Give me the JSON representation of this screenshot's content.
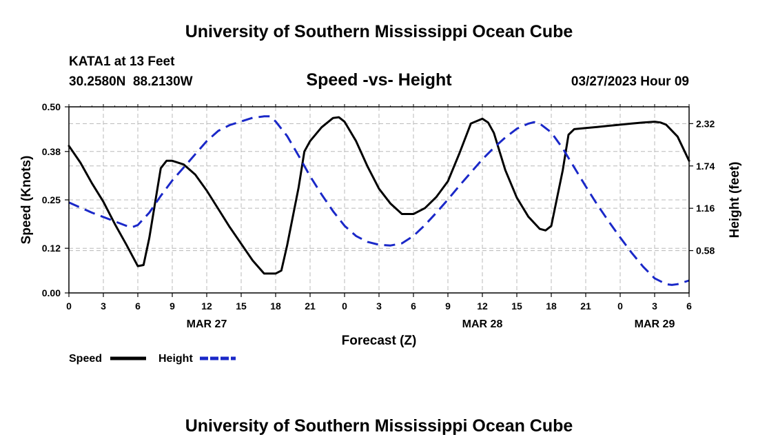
{
  "page": {
    "title": "University of Southern Mississippi Ocean Cube",
    "footer_title": "University of Southern Mississippi Ocean Cube"
  },
  "chart_data": {
    "type": "line",
    "title": "Speed -vs- Height",
    "station": "KATA1 at 13 Feet",
    "location": "30.2580N  88.2130W",
    "timestamp": "03/27/2023 Hour 09",
    "xlabel": "Forecast (Z)",
    "ylabel": "Speed (Knots)",
    "y2label": "Height (feet)",
    "x_range": [
      0,
      54
    ],
    "x_ticks": [
      0,
      3,
      6,
      9,
      12,
      15,
      18,
      21,
      24,
      27,
      30,
      33,
      36,
      39,
      42,
      45,
      48,
      51,
      54
    ],
    "x_tick_labels": [
      "0",
      "3",
      "6",
      "9",
      "12",
      "15",
      "18",
      "21",
      "0",
      "3",
      "6",
      "9",
      "12",
      "15",
      "18",
      "21",
      "0",
      "3",
      "6"
    ],
    "date_labels": [
      {
        "hour": 12,
        "label": "MAR 27"
      },
      {
        "hour": 36,
        "label": "MAR 28"
      },
      {
        "hour": 51,
        "label": "MAR 29"
      }
    ],
    "y_range": [
      0,
      0.5
    ],
    "y_ticks": [
      0,
      0.12,
      0.25,
      0.38,
      0.5
    ],
    "y_tick_labels": [
      "0.00",
      "0.12",
      "0.25",
      "0.38",
      "0.50"
    ],
    "y2_range": [
      0,
      2.55
    ],
    "y2_ticks": [
      0.58,
      1.16,
      1.74,
      2.32
    ],
    "y2_tick_labels": [
      "0.58",
      "1.16",
      "1.74",
      "2.32"
    ],
    "grid": true,
    "series": [
      {
        "name": "Speed",
        "axis": "left",
        "color": "#000000",
        "dash": "solid",
        "x": [
          0,
          1,
          2,
          3,
          4,
          5,
          6,
          6.5,
          7,
          8,
          8.5,
          9,
          10,
          11,
          12,
          13,
          14,
          15,
          16,
          17,
          18,
          18.5,
          19,
          20,
          20.5,
          21,
          22,
          23,
          23.5,
          24,
          25,
          26,
          27,
          28,
          29,
          30,
          31,
          32,
          33,
          34,
          35,
          36,
          36.5,
          37,
          38,
          39,
          40,
          41,
          41.5,
          42,
          43,
          43.5,
          44,
          45,
          46,
          47,
          48,
          49,
          50,
          51,
          51.5,
          52,
          53,
          54
        ],
        "y": [
          0.395,
          0.35,
          0.295,
          0.245,
          0.185,
          0.13,
          0.072,
          0.075,
          0.148,
          0.335,
          0.355,
          0.355,
          0.345,
          0.318,
          0.275,
          0.226,
          0.177,
          0.132,
          0.087,
          0.052,
          0.052,
          0.06,
          0.128,
          0.283,
          0.38,
          0.408,
          0.445,
          0.47,
          0.472,
          0.46,
          0.408,
          0.34,
          0.28,
          0.24,
          0.212,
          0.212,
          0.228,
          0.258,
          0.3,
          0.375,
          0.455,
          0.468,
          0.458,
          0.43,
          0.33,
          0.256,
          0.205,
          0.172,
          0.168,
          0.18,
          0.33,
          0.425,
          0.44,
          0.443,
          0.446,
          0.449,
          0.452,
          0.455,
          0.458,
          0.46,
          0.458,
          0.452,
          0.42,
          0.355
        ]
      },
      {
        "name": "Height",
        "axis": "right",
        "color": "#1a28c8",
        "dash": "dashed",
        "x": [
          0,
          2,
          4,
          5,
          5.5,
          6,
          7,
          8,
          9,
          10,
          11,
          12,
          13,
          14,
          15,
          16,
          17,
          17.5,
          18,
          19,
          20,
          21,
          22,
          23,
          24,
          25,
          26,
          27,
          28,
          29,
          30,
          31,
          32,
          33,
          34,
          35,
          36,
          37,
          38,
          39,
          40,
          40.5,
          41,
          42,
          43,
          44,
          45,
          46,
          47,
          48,
          49,
          50,
          51,
          52,
          52.5,
          53,
          54
        ],
        "y": [
          1.24,
          1.1,
          0.98,
          0.92,
          0.9,
          0.93,
          1.1,
          1.33,
          1.54,
          1.72,
          1.9,
          2.08,
          2.22,
          2.3,
          2.35,
          2.4,
          2.42,
          2.42,
          2.35,
          2.15,
          1.88,
          1.6,
          1.35,
          1.12,
          0.92,
          0.78,
          0.7,
          0.66,
          0.65,
          0.68,
          0.78,
          0.93,
          1.1,
          1.28,
          1.47,
          1.65,
          1.83,
          1.99,
          2.13,
          2.25,
          2.32,
          2.34,
          2.32,
          2.2,
          1.98,
          1.72,
          1.46,
          1.21,
          0.98,
          0.76,
          0.55,
          0.36,
          0.2,
          0.12,
          0.11,
          0.12,
          0.17
        ]
      }
    ],
    "legend": [
      {
        "label": "Speed",
        "color": "#000000",
        "dash": "solid"
      },
      {
        "label": "Height",
        "color": "#1a28c8",
        "dash": "dashed"
      }
    ],
    "legend_position": "bottom-left"
  }
}
